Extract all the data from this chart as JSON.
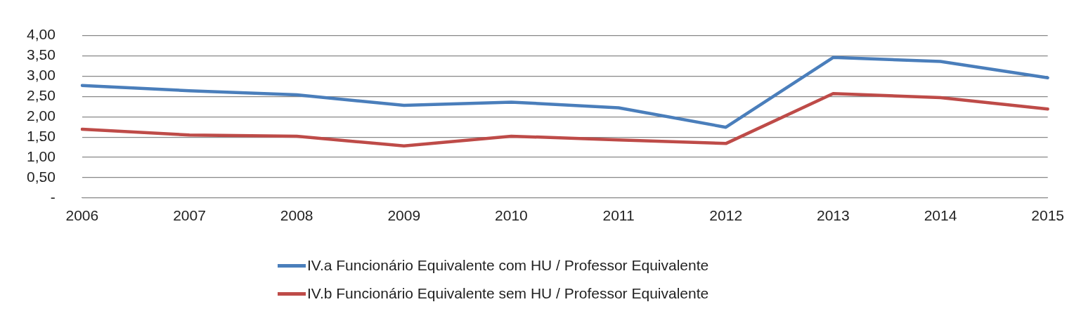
{
  "chart_data": {
    "type": "line",
    "categories": [
      "2006",
      "2007",
      "2008",
      "2009",
      "2010",
      "2011",
      "2012",
      "2013",
      "2014",
      "2015"
    ],
    "series": [
      {
        "name": "IV.a Funcionário Equivalente com HU / Professor Equivalente",
        "color": "#4a7ebb",
        "values": [
          2.77,
          2.64,
          2.54,
          2.28,
          2.36,
          2.22,
          1.74,
          3.46,
          3.36,
          2.96
        ]
      },
      {
        "name": "IV.b Funcionário Equivalente sem HU / Professor Equivalente",
        "color": "#be4b48",
        "values": [
          1.69,
          1.55,
          1.52,
          1.28,
          1.52,
          1.43,
          1.34,
          2.57,
          2.47,
          2.19
        ]
      }
    ],
    "ylim": [
      0,
      4
    ],
    "yticks": [
      {
        "value": 0,
        "label": "-"
      },
      {
        "value": 0.5,
        "label": "0,50"
      },
      {
        "value": 1,
        "label": "1,00"
      },
      {
        "value": 1.5,
        "label": "1,50"
      },
      {
        "value": 2,
        "label": "2,00"
      },
      {
        "value": 2.5,
        "label": "2,50"
      },
      {
        "value": 3,
        "label": "3,00"
      },
      {
        "value": 3.5,
        "label": "3,50"
      },
      {
        "value": 4,
        "label": "4,00"
      }
    ],
    "grid": "y",
    "legend": "bottom",
    "marker": "none",
    "line_style": "solid"
  }
}
